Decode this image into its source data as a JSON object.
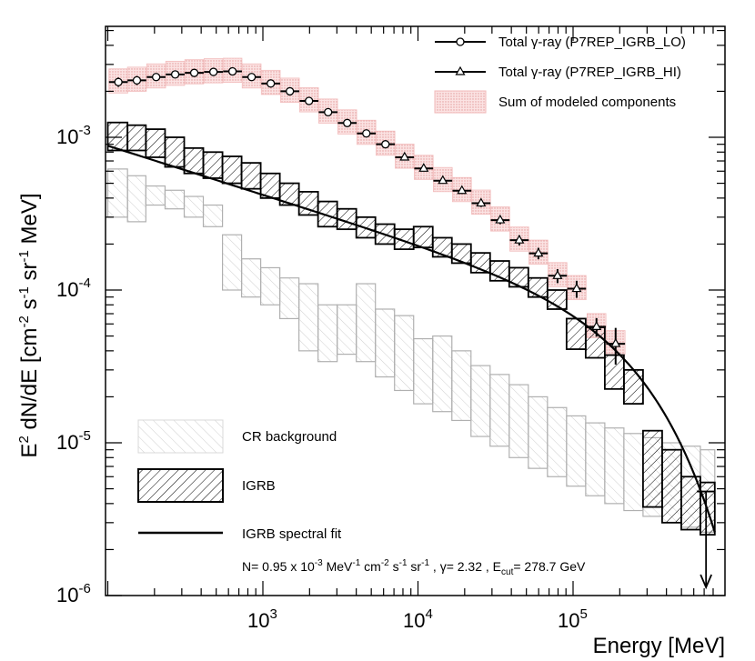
{
  "chart_data": {
    "type": "scatter",
    "xscale": "log",
    "yscale": "log",
    "xlim": [
      100,
      800000
    ],
    "ylim": [
      1e-06,
      0.005
    ],
    "xlabel": "Energy [MeV]",
    "ylabel": "E",
    "ylabel_parts": {
      "sup1": "2",
      "main": " dN/dE [cm",
      "sup2": "-2",
      "mid": " s",
      "sup3": "-1",
      "mid2": " sr",
      "sup4": "-1",
      "end": " MeV]"
    },
    "xticks": [
      {
        "base": "10",
        "exp": "3",
        "value": 1000
      },
      {
        "base": "10",
        "exp": "4",
        "value": 10000
      },
      {
        "base": "10",
        "exp": "5",
        "value": 100000
      }
    ],
    "yticks": [
      {
        "base": "10",
        "exp": "-6",
        "value": 1e-06
      },
      {
        "base": "10",
        "exp": "-5",
        "value": 1e-05
      },
      {
        "base": "10",
        "exp": "-4",
        "value": 0.0001
      },
      {
        "base": "10",
        "exp": "-3",
        "value": 0.001
      }
    ],
    "total_lo": {
      "label_pre": "Total ",
      "label_gamma": "γ",
      "label_post": "-ray (P7REP_IGRB_LO)",
      "points": [
        [
          117,
          0.0023,
          0.00016
        ],
        [
          154,
          0.00236,
          0.00016
        ],
        [
          205,
          0.00248,
          0.00014
        ],
        [
          272,
          0.00258,
          0.00014
        ],
        [
          361,
          0.00264,
          0.00012
        ],
        [
          480,
          0.00268,
          0.00011
        ],
        [
          637,
          0.0027,
          0.0001
        ],
        [
          846,
          0.00248,
          9e-05
        ],
        [
          1124,
          0.00225,
          8e-05
        ],
        [
          1493,
          0.002,
          7e-05
        ],
        [
          1983,
          0.00173,
          6e-05
        ],
        [
          2634,
          0.00146,
          5e-05
        ],
        [
          3498,
          0.00124,
          4e-05
        ],
        [
          4646,
          0.00106,
          4e-05
        ],
        [
          6171,
          0.0009,
          3e-05
        ]
      ]
    },
    "total_hi": {
      "label_pre": "Total ",
      "label_gamma": "γ",
      "label_post": "-ray (P7REP_IGRB_HI)",
      "points": [
        [
          8196,
          0.00074,
          3e-05
        ],
        [
          10886,
          0.000625,
          2.5e-05
        ],
        [
          14458,
          0.00052,
          2.2e-05
        ],
        [
          19204,
          0.000447,
          2e-05
        ],
        [
          25507,
          0.00037,
          2e-05
        ],
        [
          33879,
          0.000287,
          1.7e-05
        ],
        [
          44998,
          0.000212,
          1.6e-05
        ],
        [
          59767,
          0.000174,
          1.5e-05
        ],
        [
          79383,
          0.000124,
          1.3e-05
        ],
        [
          105437,
          0.000102,
          1.3e-05
        ],
        [
          141579,
          5.75e-05,
          8e-06
        ],
        [
          188097,
          4.45e-05,
          1.2e-05
        ]
      ]
    },
    "sum_modeled_label": "Sum of modeled components",
    "bins": [
      [
        100,
        134
      ],
      [
        134,
        176
      ],
      [
        176,
        234
      ],
      [
        234,
        311
      ],
      [
        311,
        413
      ],
      [
        413,
        549
      ],
      [
        549,
        729
      ],
      [
        729,
        968
      ],
      [
        968,
        1286
      ],
      [
        1286,
        1708
      ],
      [
        1708,
        2268
      ],
      [
        2268,
        3013
      ],
      [
        3013,
        4002
      ],
      [
        4002,
        5315
      ],
      [
        5315,
        7060
      ],
      [
        7060,
        9376
      ],
      [
        9376,
        12453
      ],
      [
        12453,
        16540
      ],
      [
        16540,
        21968
      ],
      [
        21968,
        29177
      ],
      [
        29177,
        38753
      ],
      [
        38753,
        51471
      ],
      [
        51471,
        68363
      ],
      [
        68363,
        90798
      ],
      [
        90798,
        120596
      ],
      [
        120596,
        160174
      ],
      [
        160174,
        212741
      ],
      [
        212741,
        282560
      ],
      [
        282560,
        375294
      ],
      [
        375294,
        498462
      ],
      [
        498462,
        662052
      ],
      [
        662052,
        820000
      ]
    ],
    "igrb": {
      "label": "IGRB",
      "bands": [
        [
          0.00082,
          0.00125
        ],
        [
          0.00082,
          0.0012
        ],
        [
          0.00074,
          0.00113
        ],
        [
          0.00064,
          0.001
        ],
        [
          0.00058,
          0.00085
        ],
        [
          0.00054,
          0.0008
        ],
        [
          0.0005,
          0.00075
        ],
        [
          0.00046,
          0.00068
        ],
        [
          0.0004,
          0.00058
        ],
        [
          0.00036,
          0.0005
        ],
        [
          0.00031,
          0.00044
        ],
        [
          0.00026,
          0.00038
        ],
        [
          0.00025,
          0.00034
        ],
        [
          0.00022,
          0.0003
        ],
        [
          0.0002,
          0.00027
        ],
        [
          0.000185,
          0.00025
        ],
        [
          0.00019,
          0.00026
        ],
        [
          0.000165,
          0.00022
        ],
        [
          0.00015,
          0.0002
        ],
        [
          0.00013,
          0.000175
        ],
        [
          0.000115,
          0.000155
        ],
        [
          0.000105,
          0.00014
        ],
        [
          9e-05,
          0.00012
        ],
        [
          7.5e-05,
          0.0001
        ],
        [
          4.1e-05,
          6.5e-05
        ],
        [
          3.6e-05,
          5.7e-05
        ],
        [
          2.25e-05,
          3.75e-05
        ],
        [
          1.8e-05,
          3e-05
        ],
        [
          3.8e-06,
          1.2e-05
        ],
        [
          3e-06,
          9e-06
        ],
        [
          2.7e-06,
          6e-06
        ],
        [
          2.5e-06,
          5.5e-06
        ]
      ]
    },
    "cr_background": {
      "label": "CR background",
      "bands": [
        [
          0.0003,
          0.00062
        ],
        [
          0.00028,
          0.00056
        ],
        [
          0.00036,
          0.00048
        ],
        [
          0.00034,
          0.00045
        ],
        [
          0.0003,
          0.00041
        ],
        [
          0.00026,
          0.00036
        ],
        [
          0.0001,
          0.00023
        ],
        [
          9e-05,
          0.00016
        ],
        [
          8e-05,
          0.00014
        ],
        [
          6.5e-05,
          0.00012
        ],
        [
          4e-05,
          0.00011
        ],
        [
          3.4e-05,
          8e-05
        ],
        [
          3.8e-05,
          8e-05
        ],
        [
          3.4e-05,
          0.00011
        ],
        [
          2.7e-05,
          7.5e-05
        ],
        [
          2.2e-05,
          6.8e-05
        ],
        [
          1.8e-05,
          4.8e-05
        ],
        [
          1.6e-05,
          5e-05
        ],
        [
          1.4e-05,
          4e-05
        ],
        [
          1.1e-05,
          3.2e-05
        ],
        [
          9.5e-06,
          2.8e-05
        ],
        [
          8e-06,
          2.4e-05
        ],
        [
          6.8e-06,
          2e-05
        ],
        [
          6e-06,
          1.7e-05
        ],
        [
          5.2e-06,
          1.5e-05
        ],
        [
          4.5e-06,
          1.35e-05
        ],
        [
          4e-06,
          1.25e-05
        ],
        [
          3.6e-06,
          1.15e-05
        ],
        [
          3.3e-06,
          1.08e-05
        ],
        [
          3e-06,
          1e-05
        ],
        [
          2.8e-06,
          9.5e-06
        ],
        [
          2.6e-06,
          9e-06
        ]
      ]
    },
    "fit": {
      "label": "IGRB spectral fit",
      "N": 0.00095,
      "gamma": 2.32,
      "Ecut_MeV": 278700,
      "annotation": {
        "p1": "N= 0.95 x 10",
        "p1sup": "-3",
        "p2": " MeV",
        "p2sup": "-1",
        "p3": " cm",
        "p3sup": "-2",
        "p4": " s",
        "p4sup": "-1",
        "p5": " sr",
        "p5sup": "-1",
        "p6": " , ",
        "p6gamma": "γ",
        "p7": "= 2.32 , E",
        "p7sub": "cut",
        "p8": "= 278.7 GeV"
      }
    },
    "upper_limit": {
      "energy": 720000,
      "value": 4.8e-06
    },
    "colors": {
      "line": "#000000",
      "igrb_hatch": "#000000",
      "cr_hatch": "#c8c8c8",
      "cr_border": "#b0b0b0",
      "sum_fill": "#f6c9c9",
      "sum_dot": "#e39a9a"
    }
  }
}
